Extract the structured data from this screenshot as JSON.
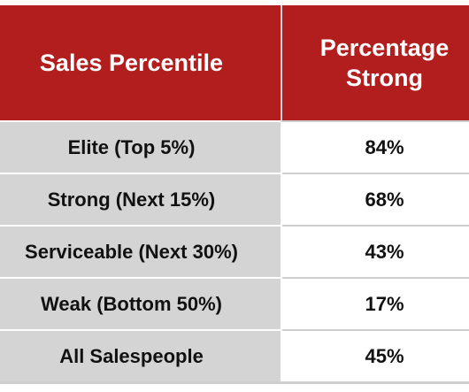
{
  "table": {
    "headers": [
      "Sales Percentile",
      "Percentage Strong"
    ],
    "header_lines": [
      [
        "Sales Percentile"
      ],
      [
        "Percentage",
        "Strong"
      ]
    ],
    "rows": [
      {
        "percentile": "Elite (Top 5%)",
        "strong": "84%"
      },
      {
        "percentile": "Strong (Next 15%)",
        "strong": "68%"
      },
      {
        "percentile": "Serviceable (Next 30%)",
        "strong": "43%"
      },
      {
        "percentile": "Weak (Bottom 50%)",
        "strong": "17%"
      },
      {
        "percentile": "All Salespeople",
        "strong": "45%"
      }
    ]
  },
  "colors": {
    "header_bg": "#b21e1e",
    "header_text": "#ffffff",
    "left_column_bg": "#d4d4d4",
    "right_column_bg": "#ffffff"
  }
}
